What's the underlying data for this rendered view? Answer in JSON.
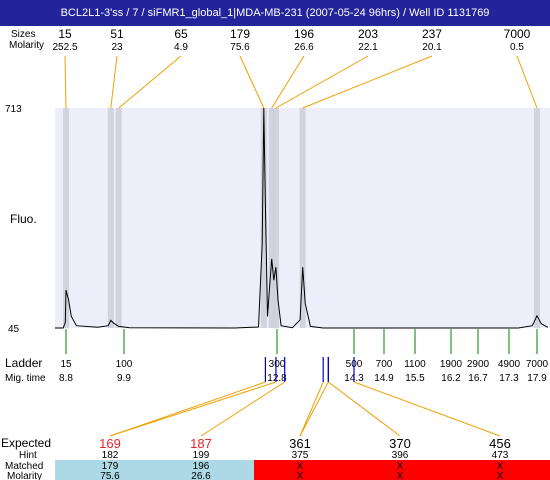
{
  "title": "BCL2L1-3'ss / 7 / siFMR1_global_1|MDA-MB-231 (2007-05-24 96hrs) / Well ID 1131769",
  "chart_data": {
    "type": "line",
    "ylabel": "Fluo.",
    "ylim": [
      45,
      713
    ],
    "y_ticks": [
      "713",
      "45"
    ],
    "top_rows": {
      "sizes_label": "Sizes",
      "molarity_label": "Molarity",
      "peaks": [
        {
          "size": "15",
          "molarity": "252.5",
          "mig": 8.8
        },
        {
          "size": "51",
          "molarity": "23",
          "mig": 9.65
        },
        {
          "size": "65",
          "molarity": "4.9",
          "mig": 9.8
        },
        {
          "size": "179",
          "molarity": "75.6",
          "mig": 12.55
        },
        {
          "size": "196",
          "molarity": "26.6",
          "mig": 12.7
        },
        {
          "size": "203",
          "molarity": "22.1",
          "mig": 12.78
        },
        {
          "size": "237",
          "molarity": "20.1",
          "mig": 13.3
        },
        {
          "size": "7000",
          "molarity": "0.5",
          "mig": 17.9
        }
      ]
    },
    "ladder": {
      "label": "Ladder",
      "mig_label": "Mig. time",
      "points": [
        {
          "bp": "15",
          "mig": "8.8"
        },
        {
          "bp": "100",
          "mig": "9.9"
        },
        {
          "bp": "300",
          "mig": "12.8"
        },
        {
          "bp": "500",
          "mig": "14.3"
        },
        {
          "bp": "700",
          "mig": "14.9"
        },
        {
          "bp": "1100",
          "mig": "15.5"
        },
        {
          "bp": "1900",
          "mig": "16.2"
        },
        {
          "bp": "2900",
          "mig": "16.7"
        },
        {
          "bp": "4900",
          "mig": "17.3"
        },
        {
          "bp": "7000",
          "mig": "17.9"
        }
      ]
    },
    "trace": [
      [
        8.0,
        45
      ],
      [
        8.6,
        45
      ],
      [
        8.75,
        62
      ],
      [
        8.8,
        160
      ],
      [
        8.85,
        130
      ],
      [
        8.9,
        80
      ],
      [
        9.0,
        52
      ],
      [
        9.4,
        47
      ],
      [
        9.6,
        52
      ],
      [
        9.65,
        68
      ],
      [
        9.7,
        60
      ],
      [
        9.8,
        50
      ],
      [
        10.0,
        46
      ],
      [
        12.0,
        45
      ],
      [
        12.45,
        48
      ],
      [
        12.52,
        300
      ],
      [
        12.55,
        713
      ],
      [
        12.58,
        420
      ],
      [
        12.62,
        80
      ],
      [
        12.66,
        170
      ],
      [
        12.7,
        255
      ],
      [
        12.74,
        190
      ],
      [
        12.78,
        230
      ],
      [
        12.82,
        130
      ],
      [
        12.88,
        52
      ],
      [
        13.1,
        46
      ],
      [
        13.25,
        70
      ],
      [
        13.3,
        230
      ],
      [
        13.35,
        120
      ],
      [
        13.45,
        50
      ],
      [
        13.7,
        45
      ],
      [
        17.5,
        45
      ],
      [
        17.8,
        52
      ],
      [
        17.9,
        82
      ],
      [
        18.0,
        58
      ],
      [
        18.15,
        47
      ]
    ],
    "expected": {
      "expected_label": "Expected",
      "hint_label": "Hint",
      "matched_label": "Matched",
      "molarity_label": "Molarity",
      "items": [
        {
          "expected": "169",
          "hint": "182",
          "matched": "179",
          "molarity": "75.6",
          "status": "matched",
          "mig_lines": [
            12.58,
            12.78
          ]
        },
        {
          "expected": "187",
          "hint": "199",
          "matched": "196",
          "molarity": "26.6",
          "status": "matched",
          "mig_lines": [
            12.95
          ]
        },
        {
          "expected": "361",
          "hint": "375",
          "matched": "X",
          "molarity": "X",
          "status": "unmatched",
          "mig_lines": [
            13.7,
            13.8
          ]
        },
        {
          "expected": "370",
          "hint": "396",
          "matched": "X",
          "molarity": "X",
          "status": "unmatched",
          "mig_lines": [
            13.8
          ]
        },
        {
          "expected": "456",
          "hint": "473",
          "matched": "X",
          "molarity": "X",
          "status": "unmatched",
          "mig_lines": [
            14.3
          ]
        }
      ]
    }
  },
  "colors": {
    "plot_bg": "#eeeefa",
    "band": "#cfcfdc",
    "trace": "#000000",
    "ladder_tick": "#008000",
    "expected_line": "#0000cc",
    "connector": "#f0a000",
    "expected_highlight": "#e8222a",
    "matched_bg": "#add8e6",
    "unmatched_bg": "#ff0000"
  }
}
